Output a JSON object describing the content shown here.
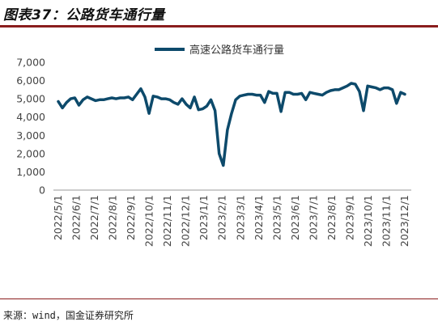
{
  "header": {
    "title": "图表37：公路货车通行量"
  },
  "footer": {
    "source": "来源：wind，国金证券研究所"
  },
  "chart_data": {
    "type": "line",
    "title": "",
    "xlabel": "",
    "ylabel": "",
    "ylim": [
      0,
      7000
    ],
    "yticks": [
      "0",
      "1,000",
      "2,000",
      "3,000",
      "4,000",
      "5,000",
      "6,000",
      "7,000"
    ],
    "xticks": [
      "2022/5/1",
      "2022/6/1",
      "2022/7/1",
      "2022/8/1",
      "2022/9/1",
      "2022/10/1",
      "2022/11/1",
      "2022/12/1",
      "2023/1/1",
      "2023/2/1",
      "2023/3/1",
      "2023/4/1",
      "2023/5/1",
      "2023/6/1",
      "2023/7/1",
      "2023/8/1",
      "2023/9/1",
      "2023/10/1",
      "2023/11/1",
      "2023/12/1"
    ],
    "grid": false,
    "legend_position": "top",
    "color": "#0d4a6b",
    "series": [
      {
        "name": "高速公路货车通行量",
        "values": [
          4850,
          4500,
          4800,
          5000,
          5050,
          4650,
          4950,
          5100,
          5000,
          4900,
          4950,
          4950,
          5000,
          5050,
          5000,
          5050,
          5050,
          5100,
          4950,
          5250,
          5550,
          5100,
          4200,
          5150,
          5100,
          5000,
          5000,
          4950,
          4800,
          4700,
          5000,
          4700,
          4500,
          5100,
          4400,
          4450,
          4600,
          4950,
          4350,
          2000,
          1350,
          3300,
          4200,
          4950,
          5150,
          5200,
          5250,
          5250,
          5200,
          5200,
          4800,
          5400,
          5300,
          5300,
          4300,
          5350,
          5350,
          5250,
          5250,
          5300,
          4950,
          5350,
          5300,
          5250,
          5200,
          5350,
          5450,
          5500,
          5500,
          5600,
          5700,
          5850,
          5800,
          5400,
          4350,
          5700,
          5650,
          5600,
          5500,
          5600,
          5600,
          5500,
          4750,
          5350,
          5250
        ]
      }
    ]
  }
}
